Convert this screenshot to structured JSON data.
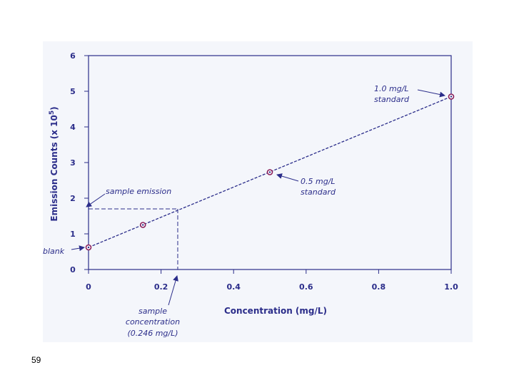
{
  "colors": {
    "ink": "#2b2d8a",
    "marker": "#8a1f5a",
    "background": "#f4f6fb"
  },
  "slide_number": "59",
  "chart_data": {
    "type": "scatter",
    "xlabel": "Concentration (mg/L)",
    "ylabel": "Emission Counts (x 10",
    "ylabel_sup": "5",
    "ylabel_close": ")",
    "xlim": [
      0,
      1.0
    ],
    "ylim": [
      0,
      6
    ],
    "x_ticks": [
      {
        "value": 0,
        "label": "0"
      },
      {
        "value": 0.2,
        "label": "0.2"
      },
      {
        "value": 0.4,
        "label": "0.4"
      },
      {
        "value": 0.6,
        "label": "0.6"
      },
      {
        "value": 0.8,
        "label": "0.8"
      },
      {
        "value": 1.0,
        "label": "1.0"
      }
    ],
    "y_ticks": [
      {
        "value": 0,
        "label": "0"
      },
      {
        "value": 1,
        "label": "1"
      },
      {
        "value": 2,
        "label": "2"
      },
      {
        "value": 3,
        "label": "3"
      },
      {
        "value": 4,
        "label": "4"
      },
      {
        "value": 5,
        "label": "5"
      },
      {
        "value": 6,
        "label": "6"
      }
    ],
    "points": [
      {
        "x": 0.0,
        "y": 0.62
      },
      {
        "x": 0.15,
        "y": 1.25
      },
      {
        "x": 0.5,
        "y": 2.73
      },
      {
        "x": 1.0,
        "y": 4.85
      }
    ],
    "fit_line": {
      "x0": 0.0,
      "y0": 0.62,
      "x1": 1.0,
      "y1": 4.85
    },
    "sample": {
      "x": 0.246,
      "y": 1.7
    },
    "grid": false,
    "annotations": {
      "blank": "blank",
      "sample_emission": "sample emission",
      "std_half_line1": "0.5 mg/L",
      "std_half_line2": "standard",
      "std_full_line1": "1.0 mg/L",
      "std_full_line2": "standard",
      "sample_conc_line1": "sample",
      "sample_conc_line2": "concentration",
      "sample_conc_line3": "(0.246 mg/L)"
    }
  }
}
